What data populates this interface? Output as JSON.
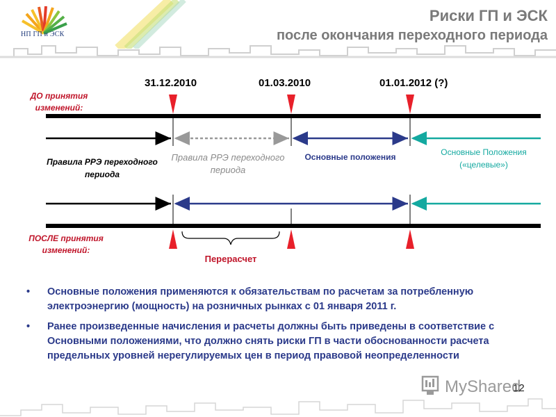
{
  "header": {
    "logo_text": "НП ГП и ЭСК",
    "title_line1": "Риски ГП и ЭСК",
    "title_line2": "после окончания переходного периода"
  },
  "timeline": {
    "dates": [
      "31.12.2010",
      "01.03.2010",
      "01.01.2012 (?)"
    ],
    "before_label": "ДО принятия изменений:",
    "after_label": "ПОСЛЕ принятия изменений:",
    "segments_before": [
      "Правила РРЭ переходного периода",
      "Правила РРЭ переходного периода",
      "Основные положения",
      "Основные Положения («целевые»)"
    ],
    "recalc_label": "Перерасчет",
    "colors": {
      "marker": "#e8202a",
      "navy": "#2b3a8a",
      "teal": "#14a9a0",
      "gray": "#999999",
      "red_label": "#c0152a"
    }
  },
  "bullets": [
    "Основные положения применяются к обязательствам по расчетам за потребленную электроэнергию (мощность) на розничных рынках с 01 января 2011 г.",
    "Ранее произведенные начисления и расчеты должны быть приведены в соответствие с  Основными положениями, что должно снять риски ГП в части обоснованности расчета предельных уровней нерегулируемых цен в период правовой неопределенности"
  ],
  "watermark": {
    "text": "MyShared"
  },
  "page_number": "12"
}
